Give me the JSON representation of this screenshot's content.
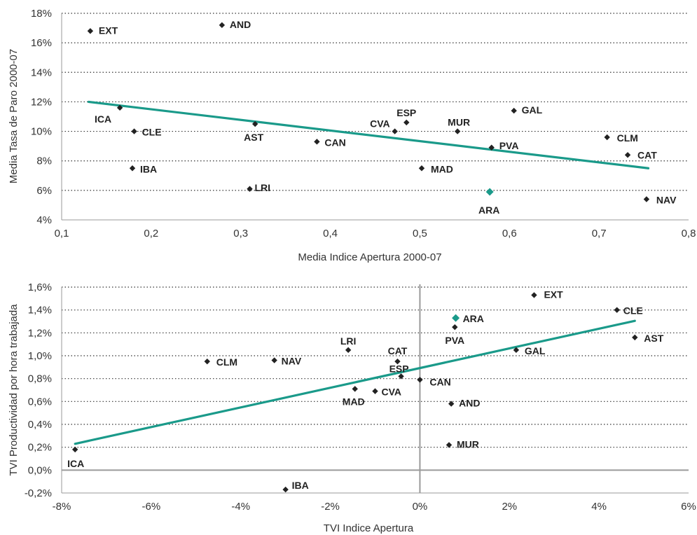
{
  "chart_data": [
    {
      "type": "scatter",
      "xlabel": "Media Indice Apertura 2000-07",
      "ylabel": "Media Tasa de Paro 2000-07",
      "xlim": [
        0.1,
        0.8
      ],
      "ylim": [
        4,
        18
      ],
      "x_ticks": [
        0.1,
        0.2,
        0.3,
        0.4,
        0.5,
        0.6,
        0.7,
        0.8
      ],
      "x_tick_labels": [
        "0,1",
        "0,2",
        "0,3",
        "0,4",
        "0,5",
        "0,6",
        "0,7",
        "0,8"
      ],
      "y_ticks": [
        4,
        6,
        8,
        10,
        12,
        14,
        16,
        18
      ],
      "y_tick_labels": [
        "4%",
        "6%",
        "8%",
        "10%",
        "12%",
        "14%",
        "16%",
        "18%"
      ],
      "grid": "horizontal-dotted",
      "point_color": "#222222",
      "highlight_color": "#1a9a8a",
      "trendline_color": "#1a9a8a",
      "trendline": {
        "x": [
          0.13,
          0.755
        ],
        "y": [
          12.0,
          7.5
        ]
      },
      "points": [
        {
          "label": "EXT",
          "x": 0.132,
          "y": 16.8
        },
        {
          "label": "AND",
          "x": 0.279,
          "y": 17.2
        },
        {
          "label": "ICA",
          "x": 0.165,
          "y": 11.6
        },
        {
          "label": "CLE",
          "x": 0.181,
          "y": 10.0
        },
        {
          "label": "IBA",
          "x": 0.179,
          "y": 7.5
        },
        {
          "label": "AST",
          "x": 0.316,
          "y": 10.5
        },
        {
          "label": "LRI",
          "x": 0.31,
          "y": 6.1
        },
        {
          "label": "CAN",
          "x": 0.385,
          "y": 9.3
        },
        {
          "label": "CVA",
          "x": 0.472,
          "y": 10.0
        },
        {
          "label": "ESP",
          "x": 0.485,
          "y": 10.6
        },
        {
          "label": "MUR",
          "x": 0.542,
          "y": 10.0
        },
        {
          "label": "MAD",
          "x": 0.502,
          "y": 7.5
        },
        {
          "label": "PVA",
          "x": 0.58,
          "y": 8.9
        },
        {
          "label": "GAL",
          "x": 0.605,
          "y": 11.4
        },
        {
          "label": "ARA",
          "x": 0.578,
          "y": 5.9,
          "highlight": true
        },
        {
          "label": "CLM",
          "x": 0.709,
          "y": 9.6
        },
        {
          "label": "CAT",
          "x": 0.732,
          "y": 8.4
        },
        {
          "label": "NAV",
          "x": 0.753,
          "y": 5.4
        }
      ]
    },
    {
      "type": "scatter",
      "xlabel": "TVI Indice Apertura",
      "ylabel": "TVI Productividad por hora trabajada",
      "xlim": [
        -8,
        6
      ],
      "ylim": [
        -0.2,
        1.6
      ],
      "x_ticks": [
        -8,
        -6,
        -4,
        -2,
        0,
        2,
        4,
        6
      ],
      "x_tick_labels": [
        "-8%",
        "-6%",
        "-4%",
        "-2%",
        "0%",
        "2%",
        "4%",
        "6%"
      ],
      "y_ticks": [
        -0.2,
        0.0,
        0.2,
        0.4,
        0.6,
        0.8,
        1.0,
        1.2,
        1.4,
        1.6
      ],
      "y_tick_labels": [
        "-0,2%",
        "0,0%",
        "0,2%",
        "0,4%",
        "0,6%",
        "0,8%",
        "1,0%",
        "1,2%",
        "1,4%",
        "1,6%"
      ],
      "grid": "horizontal-dotted",
      "zero_lines": true,
      "point_color": "#222222",
      "highlight_color": "#1a9a8a",
      "trendline_color": "#1a9a8a",
      "trendline": {
        "x": [
          -7.7,
          4.8
        ],
        "y": [
          0.23,
          1.305
        ]
      },
      "points": [
        {
          "label": "EXT",
          "x": 2.55,
          "y": 1.53
        },
        {
          "label": "CLE",
          "x": 4.4,
          "y": 1.4
        },
        {
          "label": "AST",
          "x": 4.8,
          "y": 1.16
        },
        {
          "label": "ARA",
          "x": 0.8,
          "y": 1.33,
          "highlight": true
        },
        {
          "label": "PVA",
          "x": 0.78,
          "y": 1.25
        },
        {
          "label": "GAL",
          "x": 2.15,
          "y": 1.05
        },
        {
          "label": "LRI",
          "x": -1.6,
          "y": 1.05
        },
        {
          "label": "CAT",
          "x": -0.5,
          "y": 0.95
        },
        {
          "label": "CLM",
          "x": -4.75,
          "y": 0.95
        },
        {
          "label": "NAV",
          "x": -3.25,
          "y": 0.96
        },
        {
          "label": "ESP",
          "x": -0.42,
          "y": 0.82
        },
        {
          "label": "CAN",
          "x": 0.0,
          "y": 0.79
        },
        {
          "label": "MAD",
          "x": -1.45,
          "y": 0.71
        },
        {
          "label": "CVA",
          "x": -1.0,
          "y": 0.69
        },
        {
          "label": "AND",
          "x": 0.7,
          "y": 0.58
        },
        {
          "label": "MUR",
          "x": 0.65,
          "y": 0.22
        },
        {
          "label": "ICA",
          "x": -7.7,
          "y": 0.18
        },
        {
          "label": "IBA",
          "x": -3.0,
          "y": -0.17
        }
      ]
    }
  ]
}
